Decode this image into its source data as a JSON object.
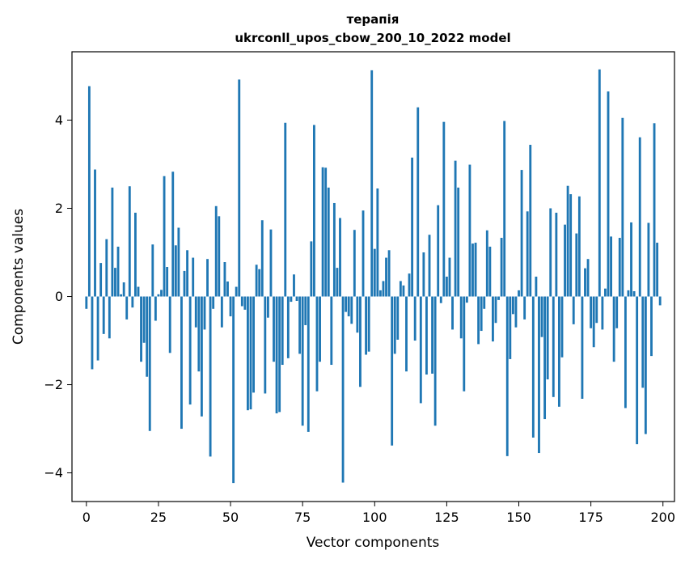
{
  "chart_data": {
    "type": "bar",
    "title": "терапія",
    "subtitle": "ukrconll_upos_cbow_200_10_2022 model",
    "xlabel": "Vector components",
    "ylabel": "Components values",
    "xlim": [
      -5,
      204
    ],
    "ylim": [
      -4.65,
      5.55
    ],
    "xticks": [
      0,
      25,
      50,
      75,
      100,
      125,
      150,
      175,
      200
    ],
    "yticks": [
      -4,
      -2,
      0,
      2,
      4
    ],
    "bar_color": "#1f77b4",
    "grid": false,
    "legend": "none",
    "x": [
      0,
      1,
      2,
      3,
      4,
      5,
      6,
      7,
      8,
      9,
      10,
      11,
      12,
      13,
      14,
      15,
      16,
      17,
      18,
      19,
      20,
      21,
      22,
      23,
      24,
      25,
      26,
      27,
      28,
      29,
      30,
      31,
      32,
      33,
      34,
      35,
      36,
      37,
      38,
      39,
      40,
      41,
      42,
      43,
      44,
      45,
      46,
      47,
      48,
      49,
      50,
      51,
      52,
      53,
      54,
      55,
      56,
      57,
      58,
      59,
      60,
      61,
      62,
      63,
      64,
      65,
      66,
      67,
      68,
      69,
      70,
      71,
      72,
      73,
      74,
      75,
      76,
      77,
      78,
      79,
      80,
      81,
      82,
      83,
      84,
      85,
      86,
      87,
      88,
      89,
      90,
      91,
      92,
      93,
      94,
      95,
      96,
      97,
      98,
      99,
      100,
      101,
      102,
      103,
      104,
      105,
      106,
      107,
      108,
      109,
      110,
      111,
      112,
      113,
      114,
      115,
      116,
      117,
      118,
      119,
      120,
      121,
      122,
      123,
      124,
      125,
      126,
      127,
      128,
      129,
      130,
      131,
      132,
      133,
      134,
      135,
      136,
      137,
      138,
      139,
      140,
      141,
      142,
      143,
      144,
      145,
      146,
      147,
      148,
      149,
      150,
      151,
      152,
      153,
      154,
      155,
      156,
      157,
      158,
      159,
      160,
      161,
      162,
      163,
      164,
      165,
      166,
      167,
      168,
      169,
      170,
      171,
      172,
      173,
      174,
      175,
      176,
      177,
      178,
      179,
      180,
      181,
      182,
      183,
      184,
      185,
      186,
      187,
      188,
      189,
      190,
      191,
      192,
      193,
      194,
      195,
      196,
      197,
      198,
      199
    ],
    "values": [
      -0.28,
      4.77,
      -1.65,
      2.88,
      -1.45,
      0.76,
      -0.85,
      1.3,
      -0.95,
      2.47,
      0.65,
      1.13,
      0.05,
      0.32,
      -0.52,
      2.5,
      -0.25,
      1.9,
      0.22,
      -1.48,
      -1.05,
      -1.82,
      -3.05,
      1.18,
      -0.55,
      0.05,
      0.15,
      2.73,
      0.67,
      -1.28,
      2.83,
      1.16,
      1.56,
      -3.0,
      0.58,
      1.05,
      -2.45,
      0.88,
      -0.7,
      -1.7,
      -2.72,
      -0.75,
      0.85,
      -3.63,
      -0.28,
      2.05,
      1.82,
      -0.7,
      0.78,
      0.34,
      -0.45,
      -4.23,
      0.22,
      4.92,
      -0.22,
      -0.3,
      -2.58,
      -2.56,
      -2.18,
      0.72,
      0.62,
      1.73,
      -2.2,
      -0.48,
      1.52,
      -1.48,
      -2.65,
      -2.62,
      -1.55,
      3.94,
      -1.4,
      -0.12,
      0.5,
      -0.1,
      -1.3,
      -2.93,
      -0.65,
      -3.07,
      1.25,
      3.89,
      -2.15,
      -1.48,
      2.93,
      2.92,
      2.47,
      -1.55,
      2.12,
      0.65,
      1.78,
      -4.22,
      -0.35,
      -0.45,
      -0.62,
      1.51,
      -0.82,
      -2.05,
      1.95,
      -1.32,
      -1.25,
      5.13,
      1.08,
      2.45,
      0.14,
      0.35,
      0.88,
      1.05,
      -3.38,
      -1.3,
      -0.98,
      0.35,
      0.25,
      -1.7,
      0.52,
      3.15,
      -1.0,
      4.29,
      -2.42,
      1.0,
      -1.77,
      1.4,
      -1.75,
      -2.93,
      2.07,
      -0.15,
      3.96,
      0.45,
      0.88,
      -0.75,
      3.08,
      2.47,
      -0.95,
      -2.15,
      -0.14,
      2.99,
      1.2,
      1.22,
      -1.08,
      -0.78,
      -0.28,
      1.5,
      1.13,
      -1.02,
      -0.6,
      -0.08,
      1.33,
      3.98,
      -3.62,
      -1.42,
      -0.4,
      -0.7,
      0.14,
      2.87,
      -0.52,
      1.93,
      3.44,
      -3.2,
      0.45,
      -3.55,
      -0.92,
      -2.78,
      -1.88,
      2.0,
      -2.28,
      1.9,
      -2.5,
      -1.38,
      1.63,
      2.51,
      2.32,
      -0.63,
      1.43,
      2.27,
      -2.32,
      0.64,
      0.85,
      -0.72,
      -1.15,
      -0.6,
      5.15,
      -0.75,
      0.18,
      4.65,
      1.36,
      -1.48,
      -0.72,
      1.33,
      4.05,
      -2.53,
      0.14,
      1.68,
      0.12,
      -3.35,
      3.61,
      -2.07,
      -3.12,
      1.67,
      -1.35,
      3.93,
      1.22,
      -0.2
    ]
  }
}
